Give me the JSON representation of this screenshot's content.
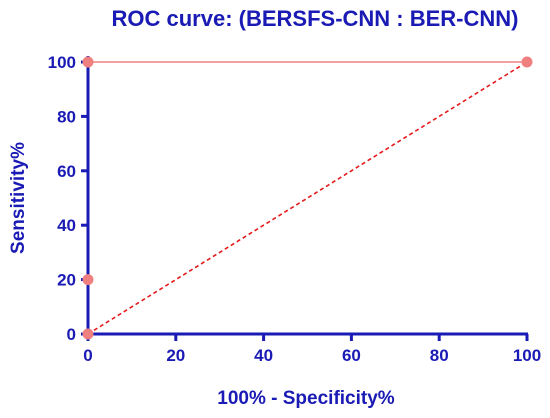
{
  "chart_data": {
    "type": "line",
    "title": "ROC curve: (BERSFS-CNN : BER-CNN)",
    "xlabel": "100% - Specificity%",
    "ylabel": "Sensitivity%",
    "xlim": [
      0,
      100
    ],
    "ylim": [
      0,
      100
    ],
    "xticks": [
      0,
      20,
      40,
      60,
      80,
      100
    ],
    "yticks": [
      0,
      20,
      40,
      60,
      80,
      100
    ],
    "grid": false,
    "series": [
      {
        "x": [
          0,
          0,
          0,
          100
        ],
        "y": [
          0,
          20,
          100,
          100
        ],
        "color": "#F08080",
        "style": "solid",
        "markers": true
      },
      {
        "x": [
          0,
          100
        ],
        "y": [
          0,
          100
        ],
        "color": "#E41A1C",
        "style": "dashed",
        "markers": false
      }
    ],
    "colors": {
      "axis": "#1A1AB4",
      "text": "#1A1AB4",
      "marker": "#F08080"
    }
  }
}
